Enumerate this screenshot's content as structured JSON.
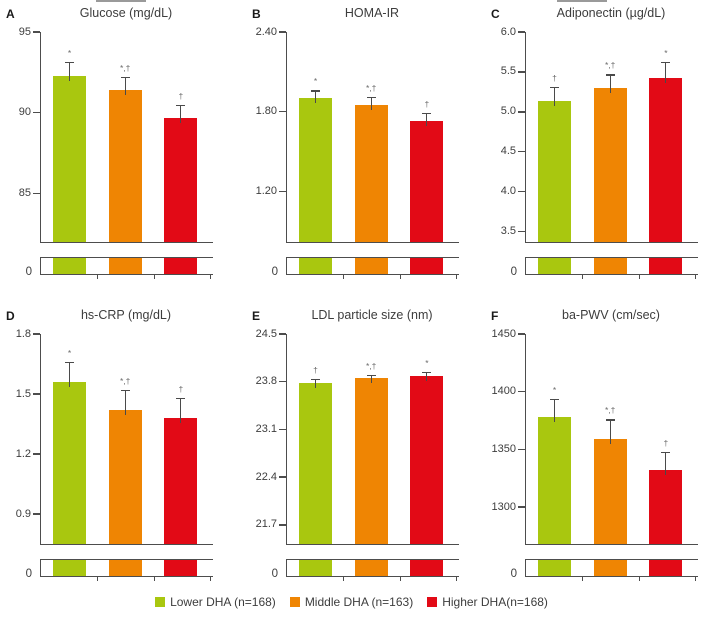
{
  "figure": {
    "zero_label": "0",
    "legend": [
      {
        "label": "Lower DHA (n=168)",
        "color": "#a9c70f"
      },
      {
        "label": "Middle DHA (n=163)",
        "color": "#ef8503"
      },
      {
        "label": "Higher DHA(n=168)",
        "color": "#e20a16"
      }
    ],
    "axis_color": "#4d4d4d",
    "marker_color": "#6b6b6b"
  },
  "chart_data": [
    {
      "type": "bar",
      "panel": "A",
      "title": "Glucose (mg/dL)",
      "categories": [
        "Lower DHA",
        "Middle DHA",
        "Higher DHA"
      ],
      "values": [
        92.3,
        91.4,
        89.7
      ],
      "errors": [
        0.85,
        0.8,
        0.8
      ],
      "sig_markers": [
        "*",
        "*,†",
        "†"
      ],
      "ylim": [
        82,
        95
      ],
      "yticks": [
        85,
        90,
        95
      ],
      "ytick_labels": [
        "85",
        "90",
        "95"
      ],
      "axis_break_to_zero": true,
      "grid": false
    },
    {
      "type": "bar",
      "panel": "B",
      "title": "HOMA-IR",
      "categories": [
        "Lower DHA",
        "Middle DHA",
        "Higher DHA"
      ],
      "values": [
        1.9,
        1.85,
        1.73
      ],
      "errors": [
        0.06,
        0.06,
        0.06
      ],
      "sig_markers": [
        "*",
        "*,†",
        "†"
      ],
      "ylim": [
        0.82,
        2.4
      ],
      "yticks": [
        1.2,
        1.8,
        2.4
      ],
      "ytick_labels": [
        "1.20",
        "1.80",
        "2.40"
      ],
      "axis_break_to_zero": true,
      "grid": false
    },
    {
      "type": "bar",
      "panel": "C",
      "title": "Adiponectin (µg/dL)",
      "categories": [
        "Lower DHA",
        "Middle DHA",
        "Higher DHA"
      ],
      "values": [
        5.14,
        5.3,
        5.43
      ],
      "errors": [
        0.17,
        0.17,
        0.2
      ],
      "sig_markers": [
        "†",
        "*,†",
        "*"
      ],
      "ylim": [
        3.37,
        6.0
      ],
      "yticks": [
        3.5,
        4.0,
        4.5,
        5.0,
        5.5,
        6.0
      ],
      "ytick_labels": [
        "3.5",
        "4.0",
        "4.5",
        "5.0",
        "5.5",
        "6.0"
      ],
      "axis_break_to_zero": true,
      "grid": false
    },
    {
      "type": "bar",
      "panel": "D",
      "title": "hs-CRP (mg/dL)",
      "categories": [
        "Lower DHA",
        "Middle DHA",
        "Higher DHA"
      ],
      "values": [
        1.56,
        1.42,
        1.38
      ],
      "errors": [
        0.1,
        0.1,
        0.1
      ],
      "sig_markers": [
        "*",
        "*,†",
        "†"
      ],
      "ylim": [
        0.75,
        1.8
      ],
      "yticks": [
        0.9,
        1.2,
        1.5,
        1.8
      ],
      "ytick_labels": [
        "0.9",
        "1.2",
        "1.5",
        "1.8"
      ],
      "axis_break_to_zero": true,
      "grid": false
    },
    {
      "type": "bar",
      "panel": "E",
      "title": "LDL particle size (nm)",
      "categories": [
        "Lower DHA",
        "Middle DHA",
        "Higher DHA"
      ],
      "values": [
        23.78,
        23.85,
        23.88
      ],
      "errors": [
        0.06,
        0.05,
        0.06
      ],
      "sig_markers": [
        "†",
        "*,†",
        "*"
      ],
      "ylim": [
        21.42,
        24.5
      ],
      "yticks": [
        21.7,
        22.4,
        23.1,
        23.8,
        24.5
      ],
      "ytick_labels": [
        "21.7",
        "22.4",
        "23.1",
        "23.8",
        "24.5"
      ],
      "axis_break_to_zero": true,
      "grid": false
    },
    {
      "type": "bar",
      "panel": "F",
      "title": "ba-PWV (cm/sec)",
      "categories": [
        "Lower DHA",
        "Middle DHA",
        "Higher DHA"
      ],
      "values": [
        1378,
        1359,
        1332
      ],
      "errors": [
        16,
        17,
        16
      ],
      "sig_markers": [
        "*",
        "*,†",
        "†"
      ],
      "ylim": [
        1268,
        1450
      ],
      "yticks": [
        1300,
        1350,
        1400,
        1450
      ],
      "ytick_labels": [
        "1300",
        "1350",
        "1400",
        "1450"
      ],
      "axis_break_to_zero": true,
      "grid": false
    }
  ]
}
